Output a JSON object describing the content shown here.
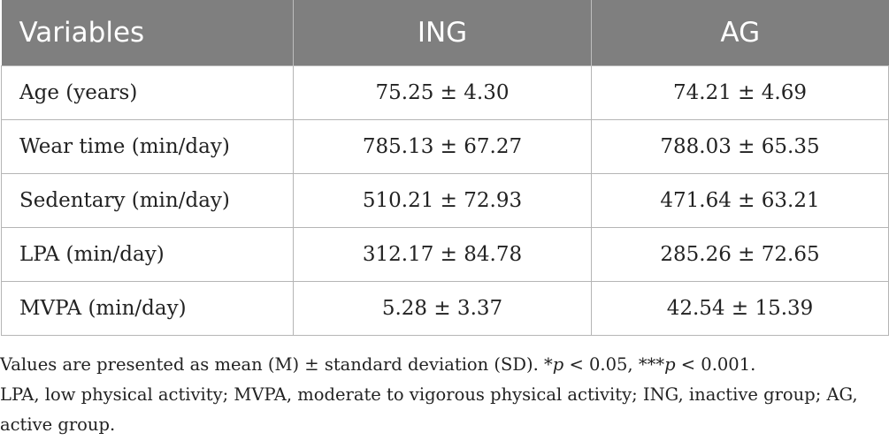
{
  "table": {
    "headers": [
      "Variables",
      "ING",
      "AG"
    ],
    "rows": [
      [
        "Age (years)",
        "75.25 ± 4.30",
        "74.21 ± 4.69"
      ],
      [
        "Wear time (min/day)",
        "785.13 ± 67.27",
        "788.03 ± 65.35"
      ],
      [
        "Sedentary (min/day)",
        "510.21 ± 72.93",
        "471.64 ± 63.21"
      ],
      [
        "LPA (min/day)",
        "312.17 ± 84.78",
        "285.26 ± 72.65"
      ],
      [
        "MVPA (min/day)",
        "5.28 ± 3.37",
        "42.54 ± 15.39"
      ]
    ]
  },
  "footnote": {
    "line1_a": "Values are presented as mean (M) ± standard deviation (SD). *",
    "p1": "p",
    "line1_b": " < 0.05, ***",
    "p2": "p",
    "line1_c": " < 0.001.",
    "line2": "LPA, low physical activity; MVPA, moderate to vigorous physical activity; ING, inactive group; AG, active group."
  },
  "colors": {
    "header_bg": "#7f7f7f",
    "header_text": "#ffffff",
    "border": "#b5b5b5"
  }
}
